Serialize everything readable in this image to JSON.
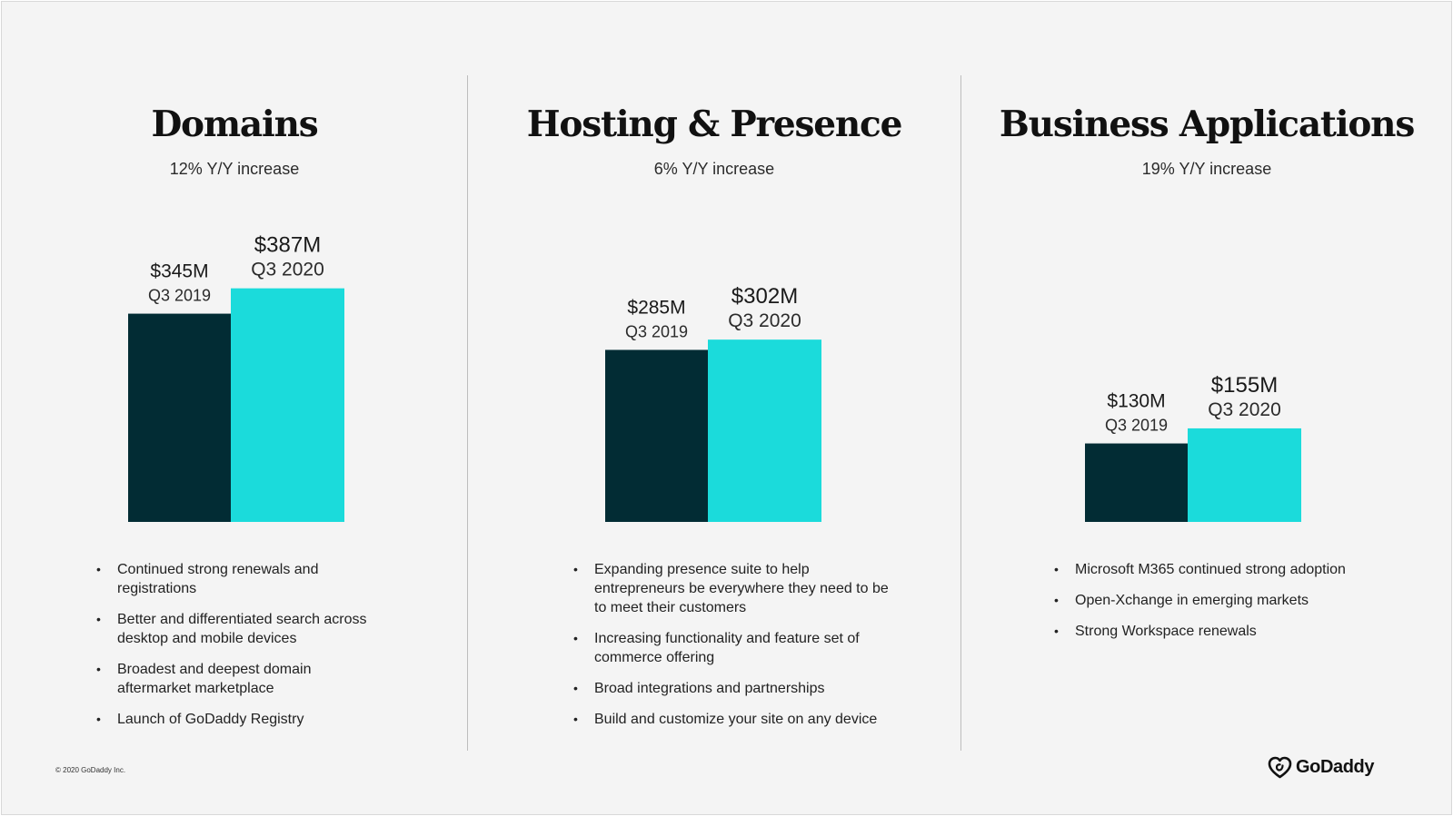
{
  "colors": {
    "q3_2019": "#022c34",
    "q3_2020": "#1bdbdb",
    "background": "#f4f4f4"
  },
  "panels": [
    {
      "title": "Domains",
      "subtitle": "12% Y/Y increase",
      "bullets": [
        "Continued strong renewals and registrations",
        "Better and differentiated search across desktop and mobile devices",
        "Broadest and deepest domain aftermarket marketplace",
        "Launch of GoDaddy Registry"
      ]
    },
    {
      "title": "Hosting & Presence",
      "subtitle": "6% Y/Y increase",
      "bullets": [
        "Expanding presence suite to help entrepreneurs be everywhere they need to be to meet their customers",
        "Increasing functionality and feature set of commerce offering",
        "Broad integrations and partnerships",
        "Build and customize your site on any device"
      ]
    },
    {
      "title": "Business Applications",
      "subtitle": "19% Y/Y increase",
      "bullets": [
        "Microsoft M365 continued strong adoption",
        "Open-Xchange in emerging markets",
        "Strong Workspace renewals"
      ]
    }
  ],
  "chart_data": [
    {
      "type": "bar",
      "title": "Domains",
      "categories": [
        "Q3 2019",
        "Q3 2020"
      ],
      "values": [
        345,
        387
      ],
      "value_labels": [
        "$345M",
        "$387M"
      ],
      "unit": "$M"
    },
    {
      "type": "bar",
      "title": "Hosting & Presence",
      "categories": [
        "Q3 2019",
        "Q3 2020"
      ],
      "values": [
        285,
        302
      ],
      "value_labels": [
        "$285M",
        "$302M"
      ],
      "unit": "$M"
    },
    {
      "type": "bar",
      "title": "Business Applications",
      "categories": [
        "Q3 2019",
        "Q3 2020"
      ],
      "values": [
        130,
        155
      ],
      "value_labels": [
        "$130M",
        "$155M"
      ],
      "unit": "$M"
    }
  ],
  "footer": {
    "copyright": "© 2020 GoDaddy Inc.",
    "logo_text": "GoDaddy"
  }
}
